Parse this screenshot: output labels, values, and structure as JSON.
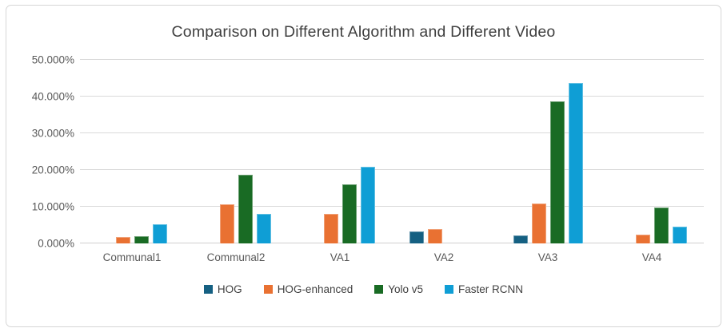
{
  "chart_data": {
    "type": "bar",
    "title": "Comparison on Different Algorithm and Different Video",
    "categories": [
      "Communal1",
      "Communal2",
      "VA1",
      "VA2",
      "VA3",
      "VA4"
    ],
    "series": [
      {
        "name": "HOG",
        "color": "#156082",
        "values": [
          0,
          0,
          0,
          3.2,
          2.2,
          0
        ]
      },
      {
        "name": "HOG-enhanced",
        "color": "#E97132",
        "values": [
          1.8,
          10.7,
          8.0,
          4.0,
          10.8,
          2.3
        ]
      },
      {
        "name": "Yolo v5",
        "color": "#196B24",
        "values": [
          1.9,
          18.6,
          16.1,
          0,
          38.8,
          9.8
        ]
      },
      {
        "name": "Faster RCNN",
        "color": "#0F9ED5",
        "values": [
          5.3,
          8.1,
          20.9,
          0,
          43.6,
          4.5
        ]
      }
    ],
    "xlabel": "",
    "ylabel": "",
    "ylim": [
      0,
      50
    ],
    "y_ticks": [
      0,
      10,
      20,
      30,
      40,
      50
    ],
    "y_tick_labels": [
      "0.000%",
      "10.000%",
      "20.000%",
      "30.000%",
      "40.000%",
      "50.000%"
    ],
    "value_unit": "percent",
    "grid": true,
    "legend_position": "bottom",
    "styles": {
      "title_color": "#404040",
      "axis_text_color": "#595959",
      "gridline_color": "#D9D9D9",
      "frame_border_color": "#D6D6D6",
      "background_color": "#FFFFFF"
    }
  }
}
